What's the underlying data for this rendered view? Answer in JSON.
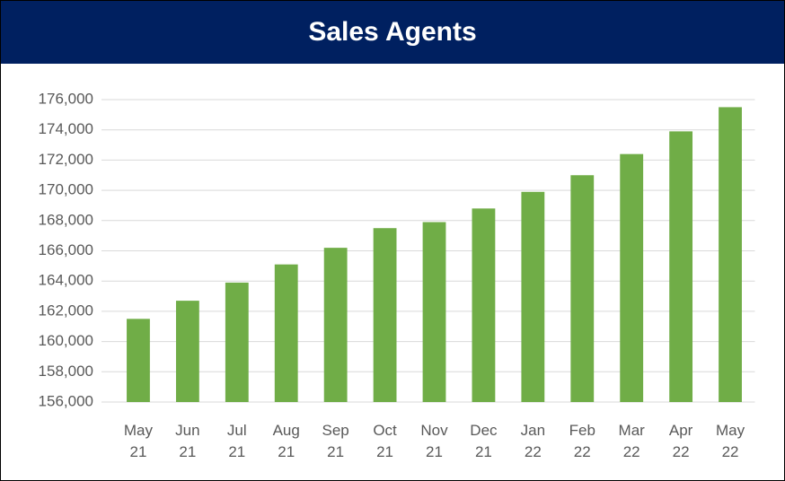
{
  "chart_data": {
    "type": "bar",
    "title": "Sales Agents",
    "categories": [
      "May 21",
      "Jun 21",
      "Jul 21",
      "Aug 21",
      "Sep 21",
      "Oct 21",
      "Nov 21",
      "Dec 21",
      "Jan 22",
      "Feb 22",
      "Mar 22",
      "Apr 22",
      "May 22"
    ],
    "values": [
      161500,
      162700,
      163900,
      165100,
      166200,
      167500,
      167900,
      168800,
      169900,
      171000,
      172400,
      173900,
      175500
    ],
    "color": "#70ad47",
    "ylim": [
      156000,
      176000
    ],
    "yticks": [
      {
        "value": 156000,
        "label": "156,000"
      },
      {
        "value": 158000,
        "label": "158,000"
      },
      {
        "value": 160000,
        "label": "160,000"
      },
      {
        "value": 162000,
        "label": "162,000"
      },
      {
        "value": 164000,
        "label": "164,000"
      },
      {
        "value": 166000,
        "label": "166,000"
      },
      {
        "value": 168000,
        "label": "168,000"
      },
      {
        "value": 170000,
        "label": "170,000"
      },
      {
        "value": 172000,
        "label": "172,000"
      },
      {
        "value": 174000,
        "label": "174,000"
      },
      {
        "value": 176000,
        "label": "176,000"
      }
    ],
    "grid": true
  }
}
